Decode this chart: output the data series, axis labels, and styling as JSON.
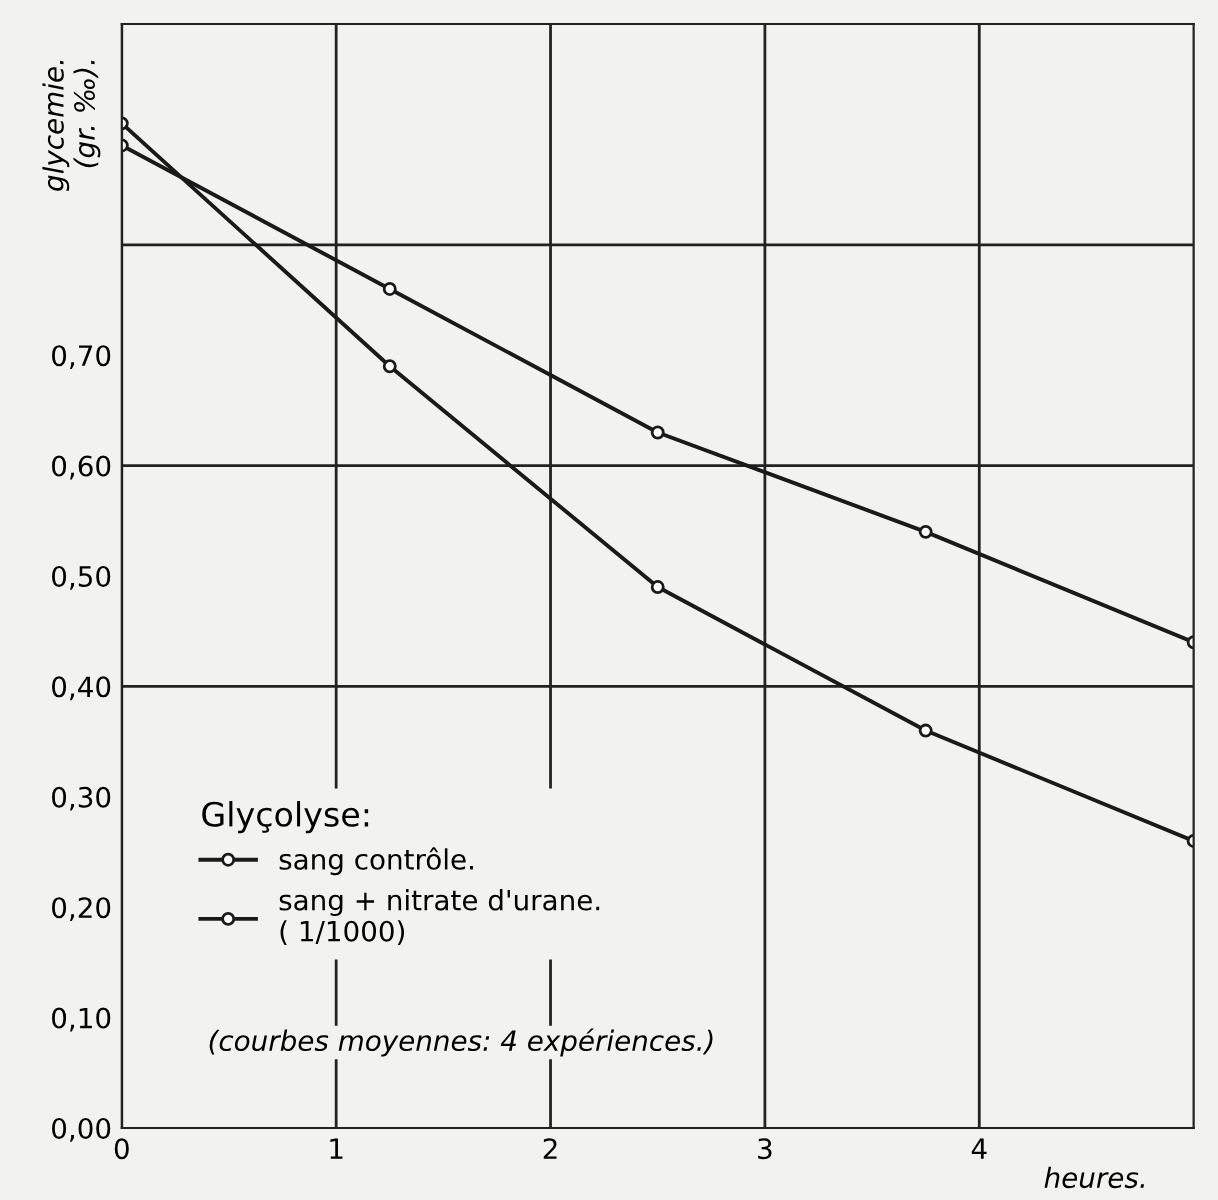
{
  "chart_data": {
    "type": "line",
    "ylabel": "glycemie.\n(gr. ‰).",
    "xlabel": "heures.",
    "legend_title": "Glyçolyse:",
    "x": [
      0,
      1.25,
      2.5,
      3.75,
      5
    ],
    "series": [
      {
        "name": "sang contrôle.",
        "color": "#1a1a1a",
        "values": [
          0.91,
          0.69,
          0.49,
          0.36,
          0.26
        ]
      },
      {
        "name": "sang + nitrate d'urane.\n( 1/1000)",
        "color": "#1a1a1a",
        "values": [
          0.89,
          0.76,
          0.63,
          0.54,
          0.44
        ]
      }
    ],
    "annotations": [
      "(courbes moyennes: 4 expériences.)"
    ],
    "xlim": [
      0,
      5
    ],
    "ylim": [
      0,
      1.0
    ],
    "xticks": [
      0,
      1,
      2,
      3,
      4
    ],
    "yticks": [
      {
        "value": 0,
        "label": "0,00"
      },
      {
        "value": 0.1,
        "label": "0,10"
      },
      {
        "value": 0.2,
        "label": "0,20"
      },
      {
        "value": 0.3,
        "label": "0,30"
      },
      {
        "value": 0.4,
        "label": "0,40"
      },
      {
        "value": 0.5,
        "label": "0,50"
      },
      {
        "value": 0.6,
        "label": "0,60"
      },
      {
        "value": 0.7,
        "label": "0,70"
      }
    ],
    "grid": "x",
    "ref_lines": [
      {
        "axis": "y",
        "value": 0.4
      },
      {
        "axis": "y",
        "value": 0.6
      },
      {
        "axis": "y",
        "value": 0.8
      }
    ],
    "legend": "center left",
    "marker": "circle",
    "line_style": "solid"
  }
}
